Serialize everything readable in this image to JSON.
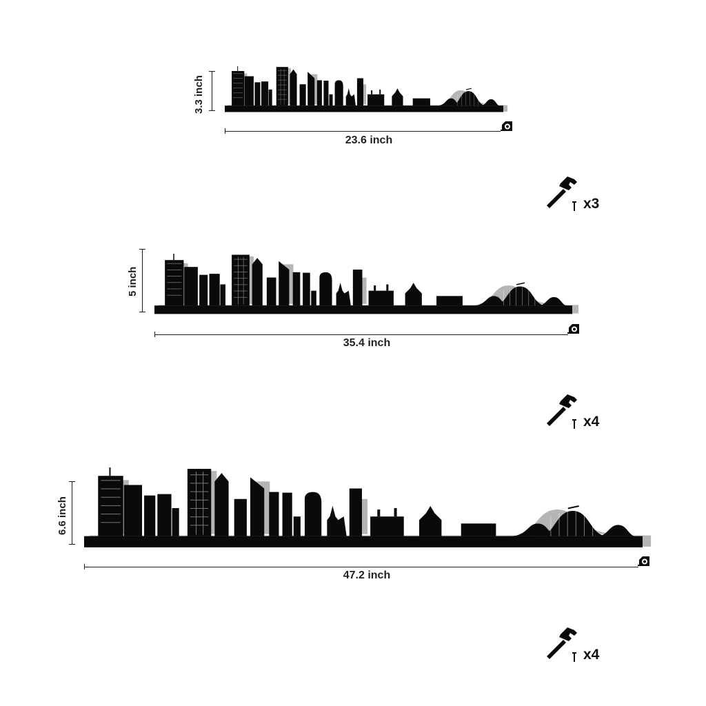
{
  "products": [
    {
      "height_label": "3.3 inch",
      "width_label": "23.6 inch",
      "quantity": "x3"
    },
    {
      "height_label": "5 inch",
      "width_label": "35.4 inch",
      "quantity": "x4"
    },
    {
      "height_label": "6.6 inch",
      "width_label": "47.2 inch",
      "quantity": "x4"
    }
  ],
  "icons": {
    "tape": "tape-measure-icon",
    "hammer": "hammer-icon",
    "nail": "nail-icon"
  },
  "colors": {
    "silhouette": "#0a0a0a",
    "shadow": "#b3b3b3",
    "background": "#ffffff"
  }
}
